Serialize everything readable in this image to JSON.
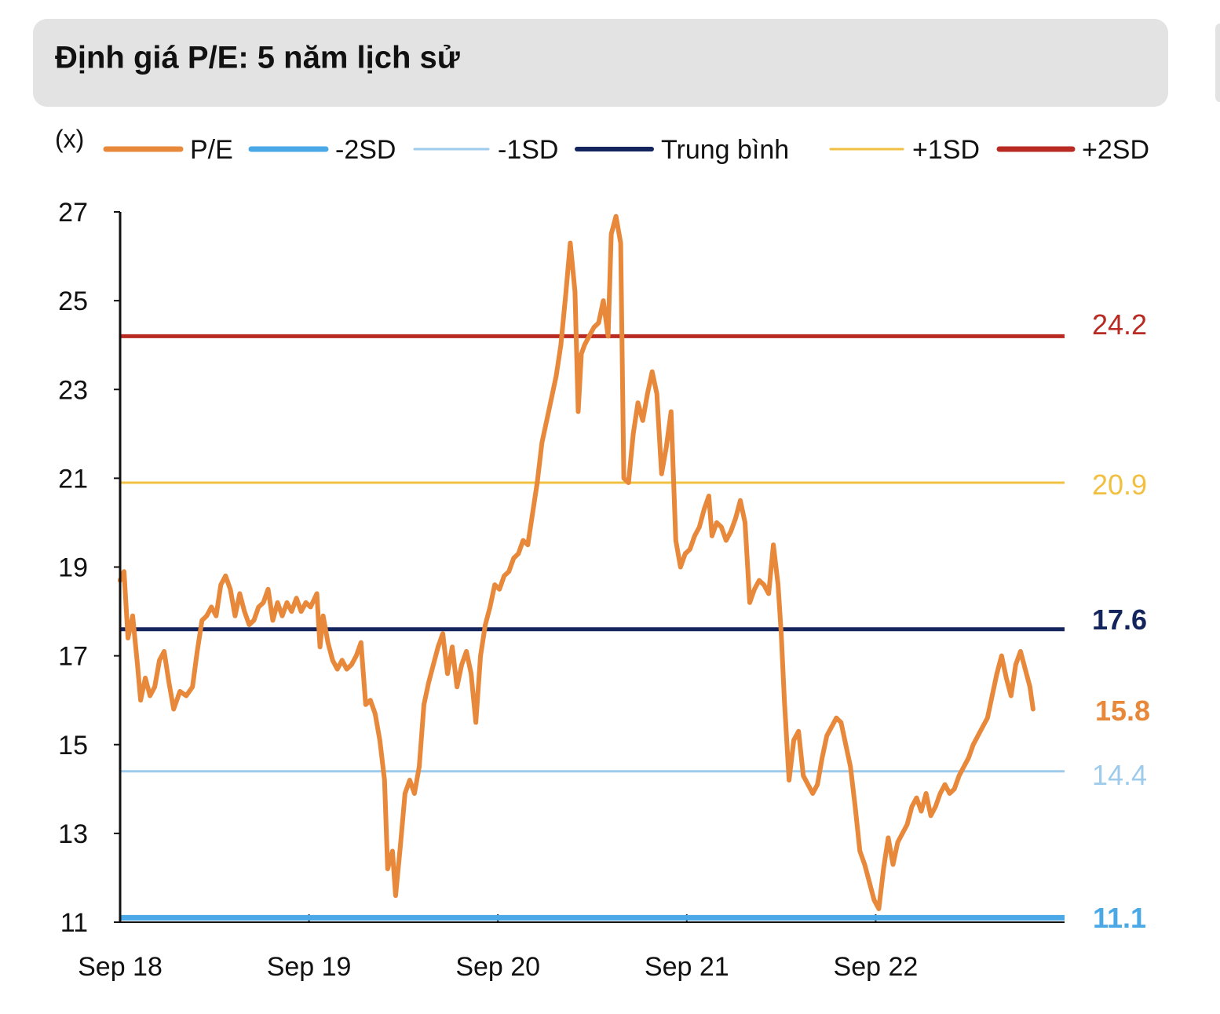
{
  "header": {
    "title": "Định giá P/E: 5 năm lịch sử"
  },
  "chart_data": {
    "type": "line",
    "title": "Định giá P/E: 5 năm lịch sử",
    "ylabel": "(x)",
    "xlabel": "",
    "ylim": [
      11,
      27
    ],
    "yticks": [
      11,
      13,
      15,
      17,
      19,
      21,
      23,
      25,
      27
    ],
    "xlim": [
      0,
      60
    ],
    "xticks": [
      {
        "label": "Sep 18",
        "x": 0
      },
      {
        "label": "Sep 19",
        "x": 12
      },
      {
        "label": "Sep 20",
        "x": 24
      },
      {
        "label": "Sep 21",
        "x": 36
      },
      {
        "label": "Sep 22",
        "x": 48
      }
    ],
    "legend": [
      {
        "key": "pe",
        "label": "P/E",
        "color": "#e8883a"
      },
      {
        "key": "m2sd",
        "label": "-2SD",
        "color": "#4aa8e6"
      },
      {
        "key": "m1sd",
        "label": "-1SD",
        "color": "#9ecbeb"
      },
      {
        "key": "mean",
        "label": "Trung bình",
        "color": "#14245c"
      },
      {
        "key": "p1sd",
        "label": "+1SD",
        "color": "#f2c040"
      },
      {
        "key": "p2sd",
        "label": "+2SD",
        "color": "#b82a22"
      }
    ],
    "reference_lines": [
      {
        "key": "p2sd",
        "value": 24.2,
        "label": "24.2",
        "color": "#b82a22",
        "bold": false
      },
      {
        "key": "p1sd",
        "value": 20.9,
        "label": "20.9",
        "color": "#f2c040",
        "bold": false
      },
      {
        "key": "mean",
        "value": 17.6,
        "label": "17.6",
        "color": "#14245c",
        "bold": true
      },
      {
        "key": "m1sd",
        "value": 14.4,
        "label": "14.4",
        "color": "#9ecbeb",
        "bold": false
      },
      {
        "key": "m2sd",
        "value": 11.1,
        "label": "11.1",
        "color": "#4aa8e6",
        "bold": true
      }
    ],
    "latest": {
      "value": 15.8,
      "label": "15.8",
      "color": "#e8883a"
    },
    "series": [
      {
        "name": "P/E",
        "color": "#e8883a",
        "points": [
          [
            0,
            18.7
          ],
          [
            0.25,
            18.9
          ],
          [
            0.5,
            17.4
          ],
          [
            0.8,
            17.9
          ],
          [
            1.1,
            16.8
          ],
          [
            1.3,
            16.0
          ],
          [
            1.6,
            16.5
          ],
          [
            1.9,
            16.1
          ],
          [
            2.2,
            16.3
          ],
          [
            2.5,
            16.9
          ],
          [
            2.8,
            17.1
          ],
          [
            3.1,
            16.4
          ],
          [
            3.4,
            15.8
          ],
          [
            3.8,
            16.2
          ],
          [
            4.2,
            16.1
          ],
          [
            4.6,
            16.3
          ],
          [
            4.9,
            17.1
          ],
          [
            5.2,
            17.8
          ],
          [
            5.5,
            17.9
          ],
          [
            5.8,
            18.1
          ],
          [
            6.1,
            17.9
          ],
          [
            6.4,
            18.6
          ],
          [
            6.7,
            18.8
          ],
          [
            7.0,
            18.5
          ],
          [
            7.3,
            17.9
          ],
          [
            7.6,
            18.4
          ],
          [
            7.9,
            18.0
          ],
          [
            8.2,
            17.7
          ],
          [
            8.5,
            17.8
          ],
          [
            8.8,
            18.1
          ],
          [
            9.1,
            18.2
          ],
          [
            9.4,
            18.5
          ],
          [
            9.7,
            17.8
          ],
          [
            10.0,
            18.2
          ],
          [
            10.3,
            17.9
          ],
          [
            10.6,
            18.2
          ],
          [
            10.9,
            18.0
          ],
          [
            11.2,
            18.3
          ],
          [
            11.5,
            18.0
          ],
          [
            11.8,
            18.2
          ],
          [
            12.1,
            18.1
          ],
          [
            12.5,
            18.4
          ],
          [
            12.7,
            17.2
          ],
          [
            12.9,
            17.9
          ],
          [
            13.2,
            17.3
          ],
          [
            13.5,
            16.9
          ],
          [
            13.8,
            16.7
          ],
          [
            14.1,
            16.9
          ],
          [
            14.4,
            16.7
          ],
          [
            14.7,
            16.8
          ],
          [
            15.0,
            17.0
          ],
          [
            15.3,
            17.3
          ],
          [
            15.6,
            15.9
          ],
          [
            15.9,
            16.0
          ],
          [
            16.2,
            15.7
          ],
          [
            16.5,
            15.1
          ],
          [
            16.8,
            14.2
          ],
          [
            17.0,
            12.2
          ],
          [
            17.3,
            12.6
          ],
          [
            17.5,
            11.6
          ],
          [
            17.8,
            12.7
          ],
          [
            18.1,
            13.9
          ],
          [
            18.4,
            14.2
          ],
          [
            18.7,
            13.9
          ],
          [
            19.0,
            14.5
          ],
          [
            19.3,
            15.9
          ],
          [
            19.6,
            16.4
          ],
          [
            19.9,
            16.8
          ],
          [
            20.2,
            17.2
          ],
          [
            20.5,
            17.5
          ],
          [
            20.8,
            16.6
          ],
          [
            21.1,
            17.2
          ],
          [
            21.4,
            16.3
          ],
          [
            21.7,
            16.8
          ],
          [
            22.0,
            17.1
          ],
          [
            22.3,
            16.6
          ],
          [
            22.6,
            15.5
          ],
          [
            22.9,
            17.0
          ],
          [
            23.2,
            17.7
          ],
          [
            23.5,
            18.1
          ],
          [
            23.8,
            18.6
          ],
          [
            24.1,
            18.5
          ],
          [
            24.4,
            18.8
          ],
          [
            24.7,
            18.9
          ],
          [
            25.0,
            19.2
          ],
          [
            25.3,
            19.3
          ],
          [
            25.6,
            19.6
          ],
          [
            25.9,
            19.5
          ],
          [
            26.2,
            20.2
          ],
          [
            26.5,
            20.9
          ],
          [
            26.8,
            21.8
          ],
          [
            27.1,
            22.3
          ],
          [
            27.4,
            22.8
          ],
          [
            27.7,
            23.3
          ],
          [
            28.0,
            24.0
          ],
          [
            28.3,
            25.1
          ],
          [
            28.6,
            26.3
          ],
          [
            28.9,
            25.2
          ],
          [
            29.1,
            22.5
          ],
          [
            29.3,
            23.8
          ],
          [
            29.5,
            24.0
          ],
          [
            29.8,
            24.2
          ],
          [
            30.1,
            24.4
          ],
          [
            30.4,
            24.5
          ],
          [
            30.7,
            25.0
          ],
          [
            31.0,
            24.2
          ],
          [
            31.2,
            26.5
          ],
          [
            31.5,
            26.9
          ],
          [
            31.8,
            26.3
          ],
          [
            32.0,
            21.0
          ],
          [
            32.3,
            20.9
          ],
          [
            32.6,
            22.0
          ],
          [
            32.9,
            22.7
          ],
          [
            33.2,
            22.3
          ],
          [
            33.5,
            22.9
          ],
          [
            33.8,
            23.4
          ],
          [
            34.1,
            22.9
          ],
          [
            34.4,
            21.1
          ],
          [
            34.7,
            21.7
          ],
          [
            35.0,
            22.5
          ],
          [
            35.3,
            19.6
          ],
          [
            35.6,
            19.0
          ],
          [
            35.9,
            19.3
          ],
          [
            36.2,
            19.4
          ],
          [
            36.5,
            19.7
          ],
          [
            36.8,
            19.9
          ],
          [
            37.1,
            20.3
          ],
          [
            37.4,
            20.6
          ],
          [
            37.6,
            19.7
          ],
          [
            37.9,
            20.0
          ],
          [
            38.2,
            19.9
          ],
          [
            38.5,
            19.6
          ],
          [
            38.8,
            19.8
          ],
          [
            39.1,
            20.1
          ],
          [
            39.4,
            20.5
          ],
          [
            39.7,
            20.0
          ],
          [
            40.0,
            18.2
          ],
          [
            40.3,
            18.5
          ],
          [
            40.6,
            18.7
          ],
          [
            40.9,
            18.6
          ],
          [
            41.2,
            18.4
          ],
          [
            41.5,
            19.5
          ],
          [
            41.8,
            18.6
          ],
          [
            42.0,
            17.5
          ],
          [
            42.2,
            16.0
          ],
          [
            42.5,
            14.2
          ],
          [
            42.8,
            15.1
          ],
          [
            43.1,
            15.3
          ],
          [
            43.4,
            14.3
          ],
          [
            43.7,
            14.1
          ],
          [
            44.0,
            13.9
          ],
          [
            44.3,
            14.1
          ],
          [
            44.6,
            14.7
          ],
          [
            44.9,
            15.2
          ],
          [
            45.2,
            15.4
          ],
          [
            45.5,
            15.6
          ],
          [
            45.8,
            15.5
          ],
          [
            46.1,
            15.0
          ],
          [
            46.4,
            14.5
          ],
          [
            46.7,
            13.6
          ],
          [
            47.0,
            12.6
          ],
          [
            47.3,
            12.3
          ],
          [
            47.6,
            11.9
          ],
          [
            47.9,
            11.5
          ],
          [
            48.2,
            11.3
          ],
          [
            48.5,
            12.2
          ],
          [
            48.8,
            12.9
          ],
          [
            49.1,
            12.3
          ],
          [
            49.4,
            12.8
          ],
          [
            49.7,
            13.0
          ],
          [
            50.0,
            13.2
          ],
          [
            50.3,
            13.6
          ],
          [
            50.6,
            13.8
          ],
          [
            50.9,
            13.5
          ],
          [
            51.2,
            13.9
          ],
          [
            51.5,
            13.4
          ],
          [
            51.8,
            13.6
          ],
          [
            52.1,
            13.9
          ],
          [
            52.4,
            14.1
          ],
          [
            52.7,
            13.9
          ],
          [
            53.0,
            14.0
          ],
          [
            53.3,
            14.3
          ],
          [
            53.6,
            14.5
          ],
          [
            53.9,
            14.7
          ],
          [
            54.2,
            15.0
          ],
          [
            54.5,
            15.2
          ],
          [
            54.8,
            15.4
          ],
          [
            55.1,
            15.6
          ],
          [
            55.4,
            16.1
          ],
          [
            55.7,
            16.6
          ],
          [
            56.0,
            17.0
          ],
          [
            56.3,
            16.5
          ],
          [
            56.6,
            16.1
          ],
          [
            56.9,
            16.8
          ],
          [
            57.2,
            17.1
          ],
          [
            57.5,
            16.7
          ],
          [
            57.8,
            16.3
          ],
          [
            58.0,
            15.8
          ]
        ]
      }
    ]
  }
}
